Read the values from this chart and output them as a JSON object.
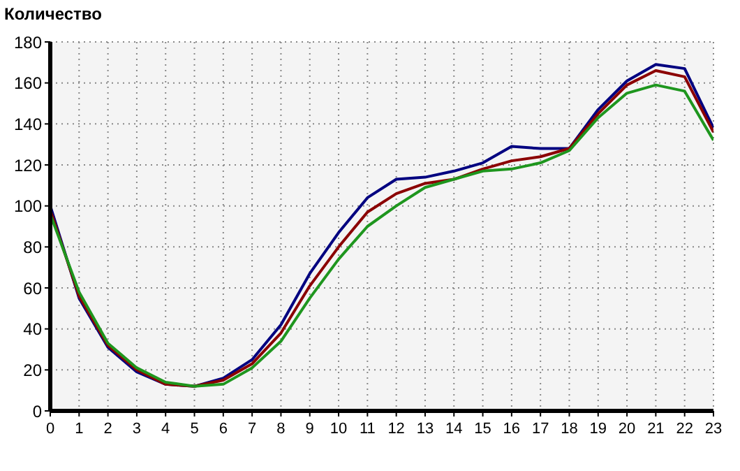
{
  "chart_data": {
    "type": "line",
    "title": "Количество",
    "x": [
      0,
      1,
      2,
      3,
      4,
      5,
      6,
      7,
      8,
      9,
      10,
      11,
      12,
      13,
      14,
      15,
      16,
      17,
      18,
      19,
      20,
      21,
      22,
      23
    ],
    "series": [
      {
        "color": "#000080",
        "values": [
          100,
          55,
          31,
          19,
          13,
          12,
          16,
          25,
          42,
          67,
          87,
          104,
          113,
          114,
          117,
          121,
          129,
          128,
          128,
          147,
          161,
          169,
          167,
          138
        ]
      },
      {
        "color": "#8b0000",
        "values": [
          98,
          56,
          32,
          20,
          13,
          12,
          15,
          23,
          38,
          61,
          80,
          97,
          106,
          111,
          113,
          118,
          122,
          124,
          128,
          145,
          159,
          166,
          163,
          136
        ]
      },
      {
        "color": "#1e961e",
        "values": [
          96,
          58,
          33,
          21,
          14,
          12,
          13,
          21,
          34,
          55,
          74,
          90,
          100,
          109,
          113,
          117,
          118,
          121,
          127,
          143,
          155,
          159,
          156,
          132
        ]
      }
    ],
    "xlim": [
      0,
      23
    ],
    "xticks": [
      0,
      1,
      2,
      3,
      4,
      5,
      6,
      7,
      8,
      9,
      10,
      11,
      12,
      13,
      14,
      15,
      16,
      17,
      18,
      19,
      20,
      21,
      22,
      23
    ],
    "ylim": [
      0,
      180
    ],
    "yticks": [
      0,
      20,
      40,
      60,
      80,
      100,
      120,
      140,
      160,
      180
    ],
    "grid": true,
    "marker": "none",
    "line_style": "solid"
  }
}
